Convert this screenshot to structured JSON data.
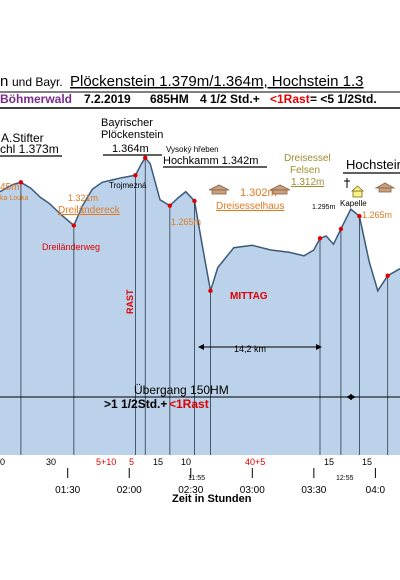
{
  "header": {
    "title_fragment": "n",
    "title_und": "und Bayr.",
    "title_main": "Plöckenstein 1.379m/1.364m, Hochstein 1.3",
    "region": "Böhmerwald",
    "date": "7.2.2019",
    "ascent": "685HM",
    "duration": "4 1/2 Std.+",
    "rast": "<1Rast",
    "total": "= <5 1/2Std."
  },
  "colors": {
    "profile_fill": "#bcd2ea",
    "profile_line": "#3b5a7a",
    "header_purple": "#7a2a8c",
    "red": "#e00000",
    "orange": "#e07a20",
    "olive": "#a08c30",
    "lower_panel": "#c9dcf2",
    "stripe": "#3c78c8"
  },
  "chart_data": {
    "type": "area",
    "title": "n und Bayr. Plöckenstein 1.379m/1.364m, Hochstein 1.3",
    "xlabel": "Zeit in Stunden",
    "ylabel": "",
    "x_unit": "hours",
    "x_ticks": [
      "01:30",
      "02:00",
      "02:30",
      "03:00",
      "03:30",
      "04:0"
    ],
    "x_range": [
      0.95,
      4.2
    ],
    "y_range": [
      1180,
      1420
    ],
    "series": [
      {
        "values": [
          {
            "x": 0.95,
            "y": 1350
          },
          {
            "x": 1.05,
            "y": 1356
          },
          {
            "x": 1.12,
            "y": 1358
          },
          {
            "x": 1.2,
            "y": 1353
          },
          {
            "x": 1.28,
            "y": 1345
          },
          {
            "x": 1.35,
            "y": 1340
          },
          {
            "x": 1.45,
            "y": 1330
          },
          {
            "x": 1.55,
            "y": 1321
          },
          {
            "x": 1.62,
            "y": 1338
          },
          {
            "x": 1.7,
            "y": 1352
          },
          {
            "x": 1.78,
            "y": 1358
          },
          {
            "x": 1.86,
            "y": 1360
          },
          {
            "x": 1.94,
            "y": 1362
          },
          {
            "x": 2.05,
            "y": 1364
          },
          {
            "x": 2.1,
            "y": 1374
          },
          {
            "x": 2.13,
            "y": 1379
          },
          {
            "x": 2.17,
            "y": 1374
          },
          {
            "x": 2.25,
            "y": 1343
          },
          {
            "x": 2.33,
            "y": 1338
          },
          {
            "x": 2.4,
            "y": 1345
          },
          {
            "x": 2.46,
            "y": 1350
          },
          {
            "x": 2.53,
            "y": 1342
          },
          {
            "x": 2.6,
            "y": 1300
          },
          {
            "x": 2.66,
            "y": 1265
          },
          {
            "x": 2.72,
            "y": 1285
          },
          {
            "x": 2.85,
            "y": 1302
          },
          {
            "x": 3.0,
            "y": 1304
          },
          {
            "x": 3.15,
            "y": 1300
          },
          {
            "x": 3.3,
            "y": 1298
          },
          {
            "x": 3.42,
            "y": 1295
          },
          {
            "x": 3.5,
            "y": 1300
          },
          {
            "x": 3.55,
            "y": 1310
          },
          {
            "x": 3.6,
            "y": 1312
          },
          {
            "x": 3.66,
            "y": 1305
          },
          {
            "x": 3.72,
            "y": 1318
          },
          {
            "x": 3.8,
            "y": 1335
          },
          {
            "x": 3.87,
            "y": 1329
          },
          {
            "x": 3.95,
            "y": 1290
          },
          {
            "x": 4.02,
            "y": 1265
          },
          {
            "x": 4.1,
            "y": 1278
          },
          {
            "x": 4.2,
            "y": 1284
          }
        ]
      }
    ],
    "peak_labels": [
      {
        "line1": "A.Stifter",
        "line2": "chl 1.373m"
      },
      {
        "line1": "Bayrischer",
        "line2": "Plöckenstein",
        "line3": "1.364m"
      },
      {
        "line1": "Vysoký hřeben",
        "line2": "Hochkamm 1.342m"
      },
      {
        "line1": "Hochstein"
      }
    ],
    "orange_labels": [
      "45m",
      "ka Louka",
      "1.321m",
      "Dreiländereck",
      "1.265m",
      "1.302m",
      "Dreisesselhaus",
      "1.265m"
    ],
    "olive_labels": [
      "Dreisessel",
      "Felsen",
      "1.312m"
    ],
    "small_labels": [
      "Trojmezná",
      "1.295m",
      "Kapelle"
    ],
    "annotations": [
      "Dreiländerweg",
      "RAST",
      "MITTAG",
      "14,2 km",
      "Übergang 150HM",
      ">1 1/2Std.+",
      "<1Rast"
    ],
    "segment_minutes": [
      "0",
      "30",
      "5+10",
      "5",
      "15",
      "10",
      "40+5",
      "15",
      "15"
    ],
    "clock_times": [
      "11:55",
      "12:55"
    ]
  }
}
